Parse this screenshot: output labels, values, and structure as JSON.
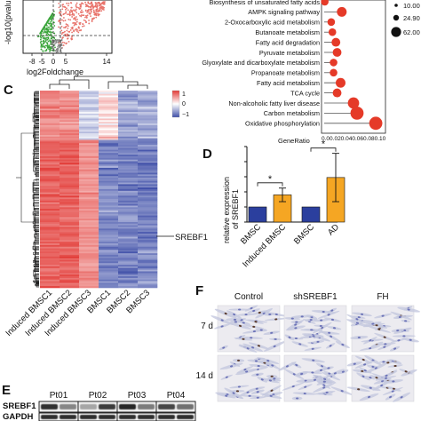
{
  "panels": {
    "C": "C",
    "D": "D",
    "E": "E",
    "F": "F"
  },
  "volcano": {
    "ylabel": "-log10(pvalu",
    "xlabel": "log2Foldchange",
    "x_ticks": [
      "-8",
      "-5",
      "0",
      "5",
      "14"
    ],
    "down_color": "#3aa53a",
    "up_color": "#e8736b"
  },
  "enrichment": {
    "xlabel": "GeneRatio",
    "x_ticks": "0.00.020.040.060.080.10",
    "legend": [
      "10.00",
      "24.90",
      "62.00"
    ],
    "dot_color": "#e53a28",
    "pathways": [
      {
        "name": "Biosynthesis of unsaturated fatty acids",
        "ratio": 0.001,
        "size": 10
      },
      {
        "name": "AMPK signaling pathway",
        "ratio": 0.03,
        "size": 24.9
      },
      {
        "name": "2-Oxocarboxylic acid metabolism",
        "ratio": 0.012,
        "size": 10
      },
      {
        "name": "Butanoate metabolism",
        "ratio": 0.014,
        "size": 10
      },
      {
        "name": "Fatty acid degradation",
        "ratio": 0.02,
        "size": 17
      },
      {
        "name": "Pyruvate metabolism",
        "ratio": 0.022,
        "size": 17
      },
      {
        "name": "Glyoxylate and dicarboxylate metabolism",
        "ratio": 0.016,
        "size": 10
      },
      {
        "name": "Propanoate metabolism",
        "ratio": 0.016,
        "size": 10
      },
      {
        "name": "Fatty acid metabolism",
        "ratio": 0.028,
        "size": 24.9
      },
      {
        "name": "TCA cycle",
        "ratio": 0.022,
        "size": 17
      },
      {
        "name": "Non-alcoholic fatty liver disease",
        "ratio": 0.05,
        "size": 40
      },
      {
        "name": "Carbon metabolism",
        "ratio": 0.056,
        "size": 62
      },
      {
        "name": "Oxidative phosphorylation",
        "ratio": 0.088,
        "size": 62
      }
    ]
  },
  "heatmap": {
    "colorbar_ticks": [
      "1",
      "0",
      "−1"
    ],
    "gene_label": "SREBF1",
    "columns": [
      "Induced BMSC1",
      "Induced BMSC2",
      "Induced BMSC3",
      "BMSC1",
      "BMSC2",
      "BMSC3"
    ],
    "high_color": "#e23a36",
    "low_color": "#3f4fa8"
  },
  "chart_data": {
    "type": "bar",
    "categories": [
      "BMSC",
      "Induced BMSC",
      "BMSC",
      "AD"
    ],
    "values": [
      1.0,
      1.8,
      1.0,
      2.95
    ],
    "errors": [
      0,
      0.45,
      0,
      1.6
    ],
    "colors": [
      "#2b3f9e",
      "#f5a623",
      "#2b3f9e",
      "#f5a623"
    ],
    "ylabel_line1": "relative expression",
    "ylabel_line2": "of SREBF1",
    "ylim": [
      0,
      5
    ],
    "y_ticks": [
      "0",
      "1",
      "2",
      "3",
      "4",
      "5"
    ],
    "significance": [
      "*",
      "*"
    ]
  },
  "blot": {
    "lanes": [
      "Pt01",
      "Pt02",
      "Pt03",
      "Pt04"
    ],
    "rows": [
      "SREBF1",
      "GAPDH"
    ]
  },
  "micro": {
    "columns": [
      "Control",
      "shSREBF1",
      "FH"
    ],
    "rows": [
      "7 d",
      "14 d"
    ]
  }
}
